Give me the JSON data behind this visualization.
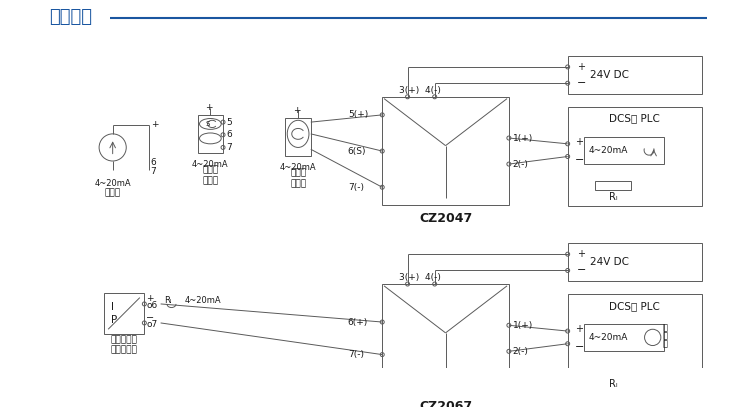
{
  "title": "接线示意",
  "title_color": "#1a56a0",
  "line_color": "#1a56a0",
  "lc": "#5a5a5a",
  "bc": "#5a5a5a",
  "tc": "#1a1a1a",
  "bg": "#ffffff",
  "cz2047": "CZ2047",
  "cz2067": "CZ2067",
  "dc24v": "24V DC",
  "dcs": "DCS， PLC",
  "sig": "4~20mA",
  "rl": "Rₗ",
  "lbl_3wire": "三线制\n变送器",
  "lbl_2wire": "二线制\n变送器",
  "lbl_cs": "电流源",
  "lbl_valve": "阀门定位器\n电气转换器",
  "p5": "5(+)",
  "p6s": "6(S)",
  "p7": "7(-)",
  "p34": "3(+)  4(-)",
  "p1": "1(+)",
  "p2": "2(-)",
  "p6p": "6(+)",
  "p7m": "7(-)"
}
